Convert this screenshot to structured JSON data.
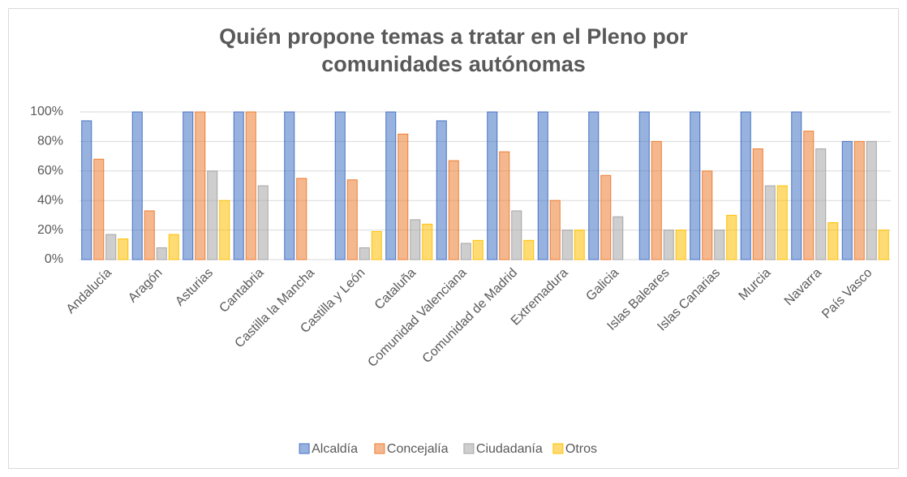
{
  "chart_data": {
    "type": "bar",
    "title": "Quién propone temas a tratar en el Pleno por comunidades autónomas",
    "categories": [
      "Andalucía",
      "Aragón",
      "Asturias",
      "Cantabria",
      "Castilla la Mancha",
      "Castilla y León",
      "Cataluña",
      "Comunidad Valenciana",
      "Comunidad de Madrid",
      "Extremadura",
      "Galicia",
      "Islas Baleares",
      "Islas Canarias",
      "Murcia",
      "Navarra",
      "País Vasco"
    ],
    "series": [
      {
        "name": "Alcaldía",
        "color": "#4472c4",
        "values": [
          94,
          100,
          100,
          100,
          100,
          100,
          100,
          94,
          100,
          100,
          100,
          100,
          100,
          100,
          100,
          80
        ]
      },
      {
        "name": "Concejalía",
        "color": "#ed7d31",
        "values": [
          68,
          33,
          100,
          100,
          55,
          54,
          85,
          67,
          73,
          40,
          57,
          80,
          60,
          75,
          87,
          80
        ]
      },
      {
        "name": "Ciudadanía",
        "color": "#a5a5a5",
        "values": [
          17,
          8,
          60,
          50,
          0,
          8,
          27,
          11,
          33,
          20,
          29,
          20,
          20,
          50,
          75,
          80
        ]
      },
      {
        "name": "Otros",
        "color": "#ffc000",
        "values": [
          14,
          17,
          40,
          0,
          0,
          19,
          24,
          13,
          13,
          20,
          0,
          20,
          30,
          50,
          25,
          20
        ]
      }
    ],
    "ylim": [
      0,
      100
    ],
    "yticks": [
      {
        "value": 0,
        "label": "0%"
      },
      {
        "value": 20,
        "label": "20%"
      },
      {
        "value": 40,
        "label": "40%"
      },
      {
        "value": 60,
        "label": "60%"
      },
      {
        "value": 80,
        "label": "80%"
      },
      {
        "value": 100,
        "label": "100%"
      }
    ],
    "grid": true,
    "legend": "bottom"
  }
}
